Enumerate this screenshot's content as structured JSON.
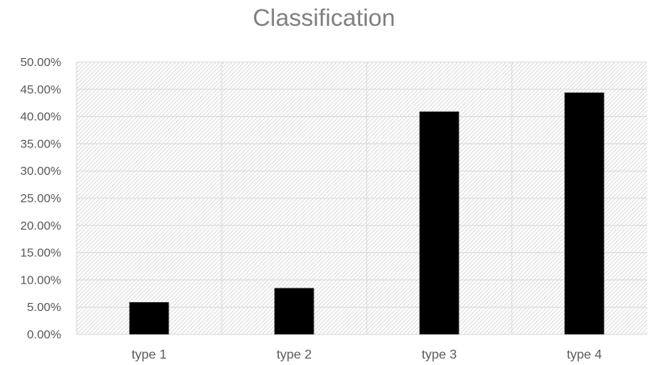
{
  "chart_data": {
    "type": "bar",
    "title": "Classification",
    "xlabel": "",
    "ylabel": "",
    "categories": [
      "type 1",
      "type 2",
      "type 3",
      "type 4"
    ],
    "values": [
      0.059,
      0.085,
      0.409,
      0.444
    ],
    "ylim": [
      0,
      0.5
    ],
    "y_ticks": [
      0,
      0.05,
      0.1,
      0.15,
      0.2,
      0.25,
      0.3,
      0.35,
      0.4,
      0.45,
      0.5
    ],
    "y_tick_labels": [
      "0.00%",
      "5.00%",
      "10.00%",
      "15.00%",
      "20.00%",
      "25.00%",
      "30.00%",
      "35.00%",
      "40.00%",
      "45.00%",
      "50.00%"
    ],
    "grid": true,
    "legend": "none",
    "bar_color": "#000000",
    "plot_background": "hatched light gray"
  }
}
